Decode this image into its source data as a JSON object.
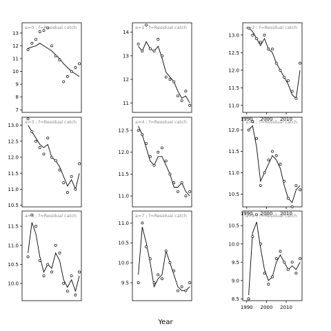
{
  "figure": {
    "xlabel": "Year"
  },
  "style": {
    "frame_color": "#000000",
    "line_color": "#000000",
    "point_color": "#000000",
    "strip_text_color": "#888888"
  },
  "chart_data": [
    {
      "type": "line",
      "panel": "a=0",
      "label": "a=0 ; f=Residual catch",
      "x": [
        1991,
        1993,
        1995,
        1997,
        1999,
        2001,
        2003,
        2005,
        2007,
        2009,
        2011,
        2013,
        2015,
        2017
      ],
      "observed": [
        11.7,
        12.2,
        12.5,
        13.1,
        13.2,
        13.4,
        12.0,
        11.2,
        10.9,
        9.2,
        9.6,
        10.0,
        10.3,
        10.6
      ],
      "fitted": [
        11.8,
        11.9,
        12.0,
        12.2,
        12.0,
        11.8,
        11.6,
        11.3,
        11.0,
        10.6,
        10.3,
        10.0,
        9.8,
        9.6
      ],
      "xlim": [
        1988,
        2018
      ],
      "ylim": [
        6.8,
        13.8
      ],
      "xticks": [],
      "yticks": [
        7,
        8,
        9,
        10,
        11,
        12,
        13
      ]
    },
    {
      "type": "line",
      "panel": "a=3",
      "label": "a=3 ; f=Residual catch",
      "x": [
        1991,
        1993,
        1995,
        1997,
        1999,
        2001,
        2003,
        2005,
        2007,
        2009,
        2011,
        2013,
        2015,
        2017
      ],
      "observed": [
        13.2,
        12.8,
        12.5,
        12.3,
        12.1,
        12.6,
        12.0,
        11.9,
        11.6,
        11.2,
        10.9,
        11.4,
        11.0,
        11.8
      ],
      "fitted": [
        13.0,
        12.8,
        12.6,
        12.4,
        12.3,
        12.4,
        12.0,
        11.9,
        11.7,
        11.4,
        11.1,
        11.3,
        11.0,
        11.5
      ],
      "xlim": [
        1988,
        2018
      ],
      "ylim": [
        10.45,
        13.25
      ],
      "xticks": [],
      "yticks": [
        10.5,
        11.0,
        11.5,
        12.0,
        12.5,
        13.0
      ]
    },
    {
      "type": "line",
      "panel": "a=6",
      "label": "a=6 ; f=Residual catch",
      "x": [
        1991,
        1993,
        1995,
        1997,
        1999,
        2001,
        2003,
        2005,
        2007,
        2009,
        2011,
        2013,
        2015,
        2017
      ],
      "observed": [
        10.7,
        11.8,
        11.5,
        10.6,
        10.2,
        10.5,
        10.3,
        11.0,
        10.8,
        10.0,
        9.8,
        10.2,
        9.7,
        10.3
      ],
      "fitted": [
        10.8,
        11.6,
        11.3,
        10.7,
        10.3,
        10.5,
        10.4,
        10.8,
        10.6,
        10.1,
        9.9,
        10.1,
        9.8,
        10.2
      ],
      "xlim": [
        1988,
        2018
      ],
      "ylim": [
        9.55,
        11.9
      ],
      "xticks": [],
      "yticks": [
        10.0,
        10.5,
        11.0,
        11.5
      ]
    },
    {
      "type": "line",
      "panel": "a=1",
      "label": "a=1 ; f=Residual catch",
      "x": [
        1991,
        1993,
        1995,
        1997,
        1999,
        2001,
        2003,
        2005,
        2007,
        2009,
        2011,
        2013,
        2015,
        2017
      ],
      "observed": [
        13.5,
        13.2,
        14.3,
        13.3,
        13.2,
        13.7,
        13.0,
        12.1,
        12.0,
        11.9,
        11.3,
        11.1,
        11.5,
        10.9
      ],
      "fitted": [
        13.4,
        13.2,
        13.6,
        13.3,
        13.2,
        13.4,
        12.9,
        12.3,
        12.1,
        11.9,
        11.5,
        11.2,
        11.3,
        11.0
      ],
      "xlim": [
        1988,
        2018
      ],
      "ylim": [
        10.6,
        14.4
      ],
      "xticks": [],
      "yticks": [
        11.0,
        12.0,
        13.0,
        14.0
      ]
    },
    {
      "type": "line",
      "panel": "a=4",
      "label": "a=4 ; f=Residual catch",
      "x": [
        1991,
        1993,
        1995,
        1997,
        1999,
        2001,
        2003,
        2005,
        2007,
        2009,
        2011,
        2013,
        2015,
        2017
      ],
      "observed": [
        12.5,
        12.4,
        12.2,
        11.9,
        11.7,
        12.0,
        12.1,
        11.8,
        11.5,
        11.3,
        11.1,
        11.3,
        11.0,
        11.1
      ],
      "fitted": [
        12.6,
        12.4,
        12.1,
        11.8,
        11.7,
        11.9,
        11.9,
        11.7,
        11.5,
        11.2,
        11.2,
        11.3,
        11.1,
        11.0
      ],
      "xlim": [
        1988,
        2018
      ],
      "ylim": [
        10.75,
        12.8
      ],
      "xticks": [],
      "yticks": [
        11.0,
        11.5,
        12.0,
        12.5
      ]
    },
    {
      "type": "line",
      "panel": "a=7",
      "label": "a=7 ; f=Residual catch",
      "x": [
        1991,
        1993,
        1995,
        1997,
        1999,
        2001,
        2003,
        2005,
        2007,
        2009,
        2011,
        2013,
        2015,
        2017
      ],
      "observed": [
        9.5,
        11.0,
        10.4,
        10.1,
        9.5,
        9.7,
        9.6,
        10.3,
        10.0,
        9.8,
        9.3,
        9.4,
        9.3,
        9.5
      ],
      "fitted": [
        9.7,
        10.9,
        10.5,
        10.0,
        9.4,
        9.6,
        9.7,
        10.3,
        10.0,
        9.7,
        9.4,
        9.3,
        9.3,
        9.4
      ],
      "xlim": [
        1988,
        2018
      ],
      "ylim": [
        9.05,
        11.3
      ],
      "xticks": [],
      "yticks": [
        9.5,
        10.0,
        10.5,
        11.0
      ]
    },
    {
      "type": "line",
      "panel": "a=2",
      "label": "a=2 ; f=Residual catch",
      "x": [
        1991,
        1993,
        1995,
        1997,
        1999,
        2001,
        2003,
        2005,
        2007,
        2009,
        2011,
        2013,
        2015,
        2017
      ],
      "observed": [
        13.2,
        13.0,
        12.9,
        12.8,
        13.0,
        12.6,
        12.6,
        12.2,
        12.0,
        11.8,
        11.7,
        11.4,
        11.2,
        12.2
      ],
      "fitted": [
        13.2,
        13.1,
        12.9,
        12.7,
        12.9,
        12.6,
        12.5,
        12.2,
        12.0,
        11.8,
        11.6,
        11.3,
        11.2,
        12.0
      ],
      "xlim": [
        1988,
        2018
      ],
      "ylim": [
        10.8,
        13.35
      ],
      "xticks": [
        1990,
        2000,
        2010
      ],
      "yticks": [
        11.0,
        11.5,
        12.0,
        12.5,
        13.0
      ]
    },
    {
      "type": "line",
      "panel": "a=5",
      "label": "a=5 ; f=Residual catch",
      "x": [
        1991,
        1993,
        1995,
        1997,
        1999,
        2001,
        2003,
        2005,
        2007,
        2009,
        2011,
        2013,
        2015,
        2017
      ],
      "observed": [
        12.0,
        12.2,
        11.8,
        10.7,
        11.0,
        11.3,
        11.5,
        11.4,
        11.2,
        10.8,
        10.4,
        10.2,
        10.7,
        10.6
      ],
      "fitted": [
        12.0,
        12.1,
        11.6,
        10.8,
        11.0,
        11.2,
        11.4,
        11.3,
        11.1,
        10.7,
        10.4,
        10.3,
        10.6,
        10.7
      ],
      "xlim": [
        1988,
        2018
      ],
      "ylim": [
        10.2,
        12.3
      ],
      "xticks": [
        1990,
        2000,
        2010
      ],
      "yticks": [
        10.5,
        11.0,
        11.5,
        12.0
      ]
    },
    {
      "type": "line",
      "panel": "a=8",
      "label": "a=8 ; f=Residual catch",
      "x": [
        1991,
        1993,
        1995,
        1997,
        1999,
        2001,
        2003,
        2005,
        2007,
        2009,
        2011,
        2013,
        2015,
        2017
      ],
      "observed": [
        8.5,
        10.2,
        10.8,
        10.0,
        9.2,
        8.9,
        9.1,
        9.6,
        9.8,
        9.5,
        9.3,
        9.5,
        9.2,
        9.6
      ],
      "fitted": [
        8.6,
        10.3,
        10.6,
        9.9,
        9.3,
        9.0,
        9.1,
        9.5,
        9.7,
        9.5,
        9.3,
        9.4,
        9.3,
        9.5
      ],
      "xlim": [
        1988,
        2018
      ],
      "ylim": [
        8.45,
        10.9
      ],
      "xticks": [
        1990,
        2000,
        2010
      ],
      "yticks": [
        8.5,
        9.0,
        9.5,
        10.0,
        10.5
      ]
    }
  ]
}
